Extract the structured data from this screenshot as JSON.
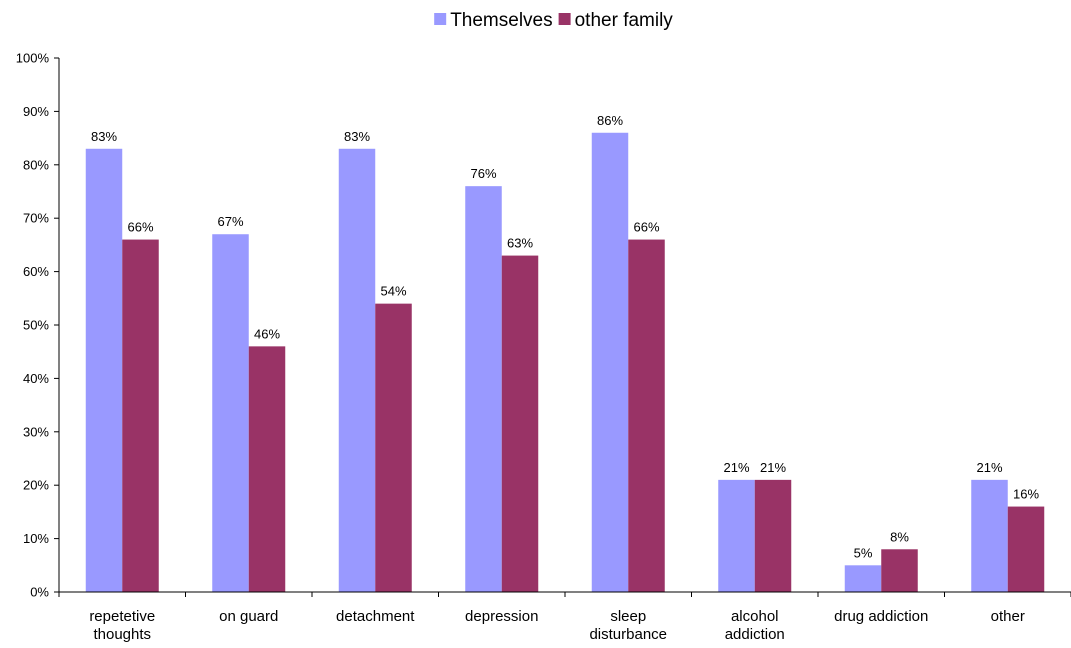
{
  "chart_data": {
    "type": "bar",
    "categories": [
      [
        "repetetive",
        "thoughts"
      ],
      [
        "on guard"
      ],
      [
        "detachment"
      ],
      [
        "depression"
      ],
      [
        "sleep",
        "disturbance"
      ],
      [
        "alcohol",
        "addiction"
      ],
      [
        "drug addiction"
      ],
      [
        "other"
      ]
    ],
    "series": [
      {
        "name": "Themselves",
        "color": "#9999FF",
        "values": [
          83,
          67,
          83,
          76,
          86,
          21,
          5,
          21
        ],
        "labels": [
          "83%",
          "67%",
          "83%",
          "76%",
          "86%",
          "21%",
          "5%",
          "21%"
        ]
      },
      {
        "name": "other family",
        "color": "#993366",
        "values": [
          66,
          46,
          54,
          63,
          66,
          21,
          8,
          16
        ],
        "labels": [
          "66%",
          "46%",
          "54%",
          "63%",
          "66%",
          "21%",
          "8%",
          "16%"
        ]
      }
    ],
    "ylim": [
      0,
      100
    ],
    "yticks": [
      0,
      10,
      20,
      30,
      40,
      50,
      60,
      70,
      80,
      90,
      100
    ],
    "ytick_labels": [
      "0%",
      "10%",
      "20%",
      "30%",
      "40%",
      "50%",
      "60%",
      "70%",
      "80%",
      "90%",
      "100%"
    ],
    "grid": false,
    "legend_position": "top-center",
    "title": "",
    "xlabel": "",
    "ylabel": ""
  }
}
